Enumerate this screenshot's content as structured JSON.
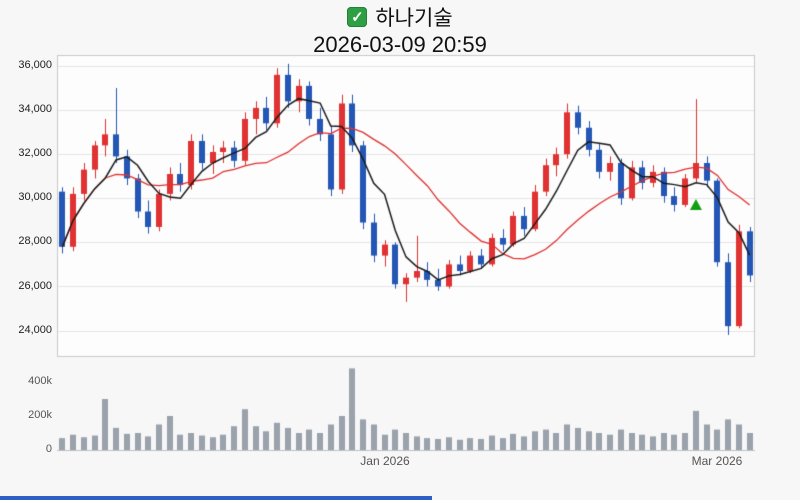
{
  "chart_data": {
    "type": "candlestick",
    "check_glyph": "✓",
    "title": "하나기술",
    "datetime": "2026-03-09 20:59",
    "ylim": [
      22800,
      36500
    ],
    "y_ticks": [
      {
        "value": 36000,
        "label": "36,000"
      },
      {
        "value": 34000,
        "label": "34,000"
      },
      {
        "value": 32000,
        "label": "32,000"
      },
      {
        "value": 30000,
        "label": "30,000"
      },
      {
        "value": 28000,
        "label": "28,000"
      },
      {
        "value": 26000,
        "label": "26,000"
      },
      {
        "value": 24000,
        "label": "24,000"
      }
    ],
    "volume_ylim": [
      0,
      500000
    ],
    "volume_ticks": [
      {
        "value": 400000,
        "label": "400k"
      },
      {
        "value": 200000,
        "label": "200k"
      },
      {
        "value": 0,
        "label": "0"
      }
    ],
    "x_ticks": [
      {
        "index": 30,
        "label": "Jan 2026"
      },
      {
        "index": 61,
        "label": "Mar 2026"
      }
    ],
    "ma_short_period": 5,
    "ma_long_period": 15,
    "marker": {
      "index": 59,
      "price": 29700,
      "shape": "triangle-up"
    },
    "colors": {
      "up": "#e03232",
      "down": "#2457b5",
      "ma_short": "#1a1a1a",
      "ma_long": "#e03030",
      "volume": "#9aa2ac",
      "marker": "#12a012",
      "grid": "#e5e5e5",
      "border": "#c9c9c9",
      "plot_bg": "#fdfdfd",
      "baseline": "#c0c0c0"
    },
    "candles": [
      [
        30300,
        30500,
        27500,
        27800,
        70000
      ],
      [
        27800,
        30500,
        27600,
        30200,
        90000
      ],
      [
        30200,
        31600,
        29900,
        31300,
        75000
      ],
      [
        31300,
        32600,
        30900,
        32400,
        85000
      ],
      [
        32400,
        33600,
        31900,
        32900,
        300000
      ],
      [
        32900,
        35000,
        31600,
        31900,
        130000
      ],
      [
        31900,
        32200,
        30600,
        30900,
        95000
      ],
      [
        30900,
        31100,
        29100,
        29400,
        100000
      ],
      [
        29400,
        29900,
        28400,
        28700,
        80000
      ],
      [
        28700,
        30400,
        28500,
        30200,
        150000
      ],
      [
        30200,
        31400,
        29900,
        31100,
        200000
      ],
      [
        31100,
        31600,
        30300,
        30600,
        90000
      ],
      [
        30600,
        32900,
        30400,
        32600,
        100000
      ],
      [
        32600,
        32900,
        31300,
        31600,
        85000
      ],
      [
        31600,
        32400,
        31100,
        32100,
        75000
      ],
      [
        32100,
        32600,
        31600,
        32300,
        90000
      ],
      [
        32300,
        32600,
        31400,
        31700,
        140000
      ],
      [
        31700,
        33900,
        31500,
        33600,
        240000
      ],
      [
        33600,
        34400,
        32900,
        34100,
        140000
      ],
      [
        34100,
        34600,
        33100,
        33400,
        110000
      ],
      [
        33400,
        35900,
        33200,
        35600,
        160000
      ],
      [
        35600,
        36100,
        34100,
        34400,
        130000
      ],
      [
        34400,
        35400,
        33900,
        35100,
        100000
      ],
      [
        35100,
        35300,
        33300,
        33600,
        120000
      ],
      [
        33600,
        34100,
        32600,
        32900,
        100000
      ],
      [
        32900,
        33300,
        30100,
        30400,
        150000
      ],
      [
        30400,
        34700,
        30200,
        34300,
        200000
      ],
      [
        34300,
        34700,
        32100,
        32400,
        480000
      ],
      [
        32400,
        32600,
        28600,
        28900,
        180000
      ],
      [
        28900,
        29300,
        27100,
        27400,
        150000
      ],
      [
        27400,
        28100,
        26900,
        27900,
        90000
      ],
      [
        27900,
        28000,
        25900,
        26100,
        120000
      ],
      [
        26100,
        26600,
        25300,
        26400,
        100000
      ],
      [
        26400,
        28300,
        26200,
        26700,
        80000
      ],
      [
        26700,
        27100,
        26000,
        26300,
        70000
      ],
      [
        26300,
        26800,
        25800,
        26000,
        65000
      ],
      [
        26000,
        27200,
        25900,
        27000,
        75000
      ],
      [
        27000,
        27400,
        26500,
        26700,
        60000
      ],
      [
        26700,
        27600,
        26600,
        27400,
        70000
      ],
      [
        27400,
        27700,
        26800,
        27000,
        65000
      ],
      [
        27000,
        28400,
        26900,
        28200,
        85000
      ],
      [
        28200,
        28600,
        27600,
        27900,
        70000
      ],
      [
        27900,
        29400,
        27800,
        29200,
        95000
      ],
      [
        29200,
        29600,
        28300,
        28600,
        80000
      ],
      [
        28600,
        30600,
        28500,
        30300,
        110000
      ],
      [
        30300,
        31800,
        30100,
        31500,
        120000
      ],
      [
        31500,
        32300,
        31000,
        32000,
        100000
      ],
      [
        32000,
        34300,
        31800,
        33900,
        150000
      ],
      [
        33900,
        34200,
        32900,
        33200,
        130000
      ],
      [
        33200,
        33500,
        31900,
        32200,
        110000
      ],
      [
        32200,
        32500,
        30900,
        31200,
        100000
      ],
      [
        31200,
        31900,
        30800,
        31600,
        90000
      ],
      [
        31600,
        31800,
        29700,
        30000,
        120000
      ],
      [
        30000,
        31700,
        29900,
        31400,
        100000
      ],
      [
        31400,
        31700,
        30400,
        30700,
        90000
      ],
      [
        30700,
        31500,
        30500,
        31200,
        80000
      ],
      [
        31200,
        31400,
        29800,
        30100,
        100000
      ],
      [
        30100,
        30500,
        29400,
        29700,
        90000
      ],
      [
        29700,
        31100,
        29600,
        30900,
        100000
      ],
      [
        30900,
        34500,
        30700,
        31600,
        230000
      ],
      [
        31600,
        31900,
        30500,
        30800,
        150000
      ],
      [
        30800,
        30900,
        26900,
        27100,
        120000
      ],
      [
        27100,
        27500,
        23800,
        24200,
        180000
      ],
      [
        24200,
        28800,
        24100,
        28500,
        150000
      ],
      [
        28500,
        28700,
        26200,
        26500,
        100000
      ]
    ]
  }
}
